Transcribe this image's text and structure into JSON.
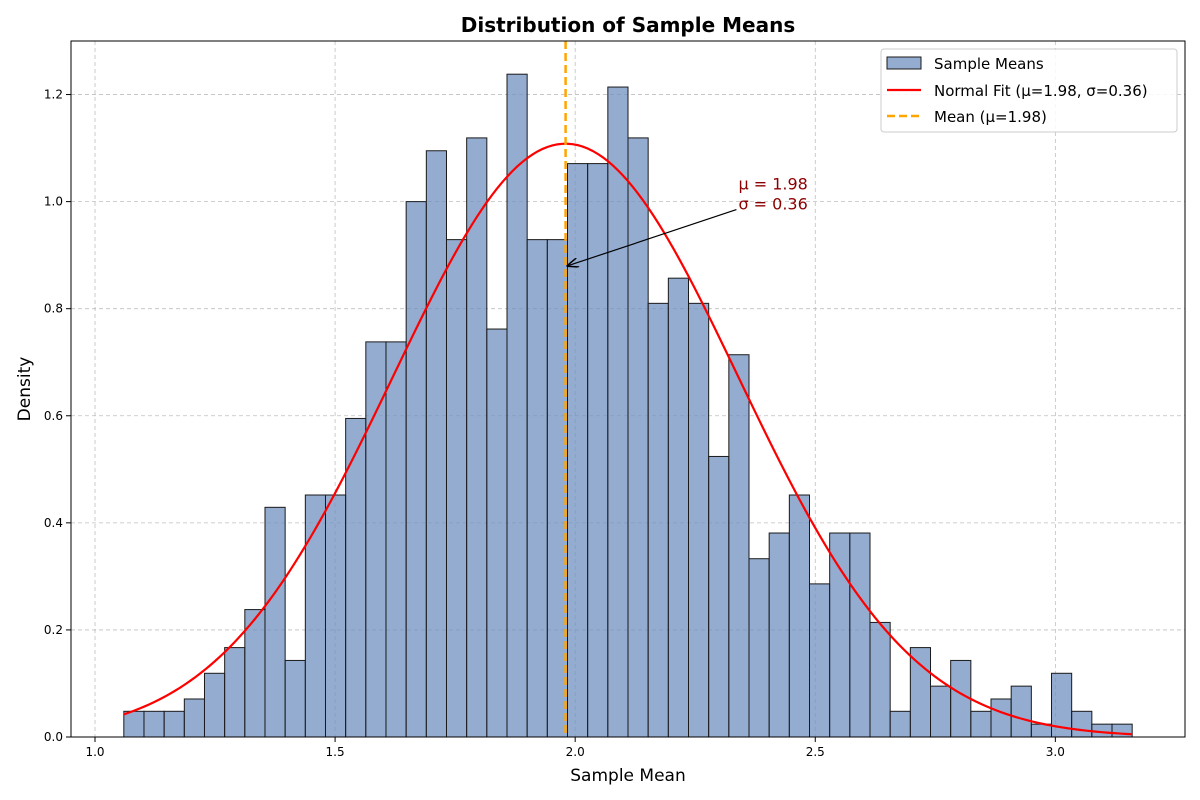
{
  "chart_data": {
    "type": "bar",
    "title": "Distribution of Sample Means",
    "xlabel": "Sample Mean",
    "ylabel": "Density",
    "xlim": [
      0.95,
      3.27
    ],
    "ylim": [
      0.0,
      1.3
    ],
    "xticks": [
      1.0,
      1.5,
      2.0,
      2.5,
      3.0
    ],
    "xtick_labels": [
      "1.0",
      "1.5",
      "2.0",
      "2.5",
      "3.0"
    ],
    "yticks": [
      0.0,
      0.2,
      0.4,
      0.6,
      0.8,
      1.0,
      1.2
    ],
    "ytick_labels": [
      "0.0",
      "0.2",
      "0.4",
      "0.6",
      "0.8",
      "1.0",
      "1.2"
    ],
    "grid": true,
    "histogram": {
      "name": "Sample Means",
      "bin_start": 1.06,
      "bin_width": 0.042,
      "values": [
        0.048,
        0.048,
        0.048,
        0.071,
        0.119,
        0.167,
        0.238,
        0.429,
        0.143,
        0.452,
        0.452,
        0.595,
        0.738,
        0.738,
        1.0,
        1.095,
        0.929,
        1.119,
        0.762,
        1.238,
        0.929,
        0.929,
        1.071,
        1.071,
        1.214,
        1.119,
        0.81,
        0.857,
        0.81,
        0.524,
        0.714,
        0.333,
        0.381,
        0.452,
        0.286,
        0.381,
        0.381,
        0.214,
        0.048,
        0.167,
        0.095,
        0.143,
        0.048,
        0.071,
        0.095,
        0.024,
        0.119,
        0.048,
        0.024,
        0.024
      ],
      "color": "#7090c0"
    },
    "normal_fit": {
      "name": "Normal Fit (μ=1.98, σ=0.36)",
      "mu": 1.98,
      "sigma": 0.36,
      "x_range": [
        1.06,
        3.16
      ],
      "color": "#ff0000"
    },
    "mean_line": {
      "name": "Mean (μ=1.98)",
      "x": 1.98,
      "color": "#ffa500"
    },
    "annotation": {
      "line1": "μ = 1.98",
      "line2": "σ = 0.36",
      "arrow_target": [
        1.98,
        0.88
      ],
      "text_anchor": [
        2.34,
        1.0
      ]
    },
    "legend": {
      "placement": "top-right",
      "entries": [
        "Sample Means",
        "Normal Fit (μ=1.98, σ=0.36)",
        "Mean (μ=1.98)"
      ]
    }
  }
}
